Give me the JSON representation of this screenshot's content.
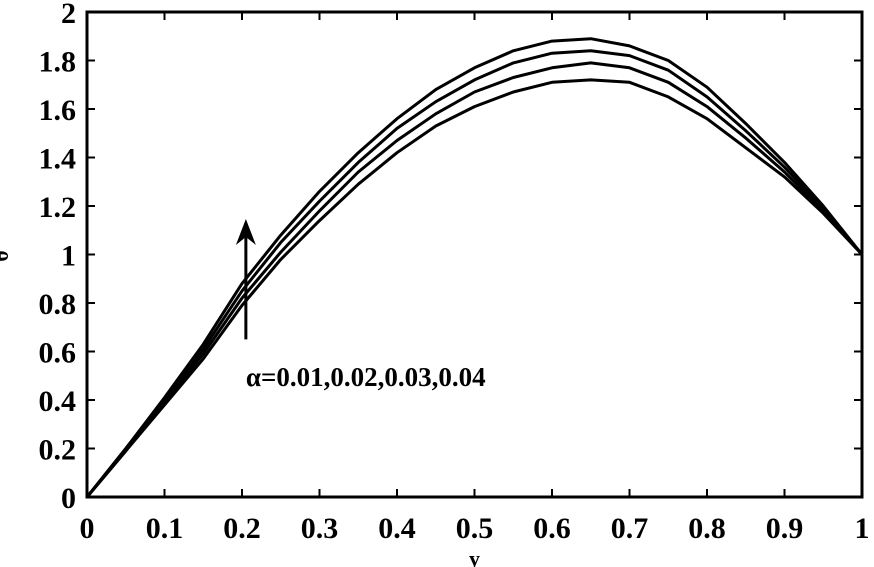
{
  "chart_data": {
    "type": "line",
    "xlabel": "y",
    "ylabel": "θ",
    "xlim": [
      0,
      1
    ],
    "ylim": [
      0,
      2
    ],
    "x_ticks": [
      "0",
      "0.1",
      "0.2",
      "0.3",
      "0.4",
      "0.5",
      "0.6",
      "0.7",
      "0.8",
      "0.9",
      "1"
    ],
    "y_ticks": [
      "0",
      "0.2",
      "0.4",
      "0.6",
      "0.8",
      "1",
      "1.2",
      "1.4",
      "1.6",
      "1.8",
      "2"
    ],
    "grid": false,
    "legend": "none",
    "x": [
      0,
      0.05,
      0.1,
      0.15,
      0.2,
      0.25,
      0.3,
      0.35,
      0.4,
      0.45,
      0.5,
      0.55,
      0.6,
      0.65,
      0.7,
      0.75,
      0.8,
      0.85,
      0.9,
      0.95,
      1
    ],
    "series": [
      {
        "values": [
          0.0,
          0.19,
          0.38,
          0.57,
          0.79,
          0.98,
          1.14,
          1.29,
          1.42,
          1.53,
          1.61,
          1.67,
          1.71,
          1.72,
          1.71,
          1.65,
          1.56,
          1.44,
          1.32,
          1.17,
          1.0
        ]
      },
      {
        "values": [
          0.0,
          0.19,
          0.39,
          0.59,
          0.82,
          1.01,
          1.18,
          1.34,
          1.47,
          1.58,
          1.67,
          1.73,
          1.77,
          1.79,
          1.77,
          1.71,
          1.61,
          1.48,
          1.34,
          1.18,
          1.0
        ]
      },
      {
        "values": [
          0.0,
          0.2,
          0.4,
          0.61,
          0.85,
          1.05,
          1.22,
          1.38,
          1.52,
          1.63,
          1.72,
          1.79,
          1.83,
          1.84,
          1.82,
          1.76,
          1.65,
          1.51,
          1.36,
          1.19,
          1.0
        ]
      },
      {
        "values": [
          0.0,
          0.2,
          0.41,
          0.63,
          0.88,
          1.08,
          1.26,
          1.42,
          1.56,
          1.68,
          1.77,
          1.84,
          1.88,
          1.89,
          1.86,
          1.8,
          1.69,
          1.54,
          1.38,
          1.2,
          1.0
        ]
      }
    ],
    "annotation": {
      "text": "α=0.01,0.02,0.03,0.04",
      "arrow_x": 0.205,
      "arrow_from_y": 0.65,
      "arrow_to_y": 1.13
    }
  }
}
